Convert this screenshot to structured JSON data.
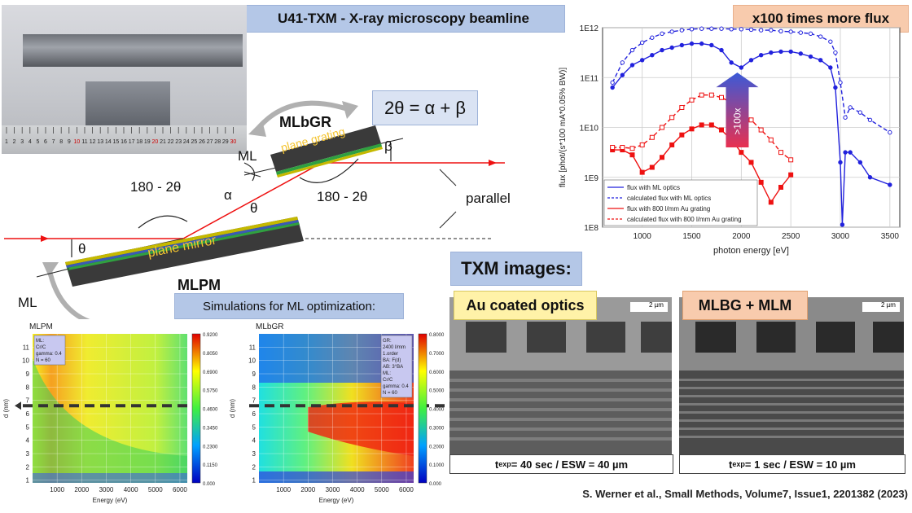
{
  "title": "U41-TXM - X-ray microscopy beamline",
  "flux_gain": "x100 times more flux",
  "equation": "2θ = α + β",
  "txm_heading": "TXM images:",
  "sim_heading": "Simulations for ML optimization:",
  "diagram": {
    "grating_name": "MLbGR",
    "grating_label": "plane grating",
    "mirror_name": "MLPM",
    "mirror_label": "plane mirror",
    "ml_top": "ML",
    "ml_bottom": "ML",
    "angle_left": "180 - 2θ",
    "angle_right": "180 - 2θ",
    "alpha": "α",
    "beta": "β",
    "theta_mid": "θ",
    "theta_low": "θ",
    "parallel": "parallel"
  },
  "ruler_numbers": [
    "1",
    "2",
    "3",
    "4",
    "5",
    "6",
    "7",
    "8",
    "9",
    "10",
    "11",
    "12",
    "13",
    "14",
    "15",
    "16",
    "17",
    "18",
    "19",
    "20",
    "21",
    "22",
    "23",
    "24",
    "25",
    "26",
    "27",
    "28",
    "29",
    "30"
  ],
  "flux_chart": {
    "ylabel": "flux [phot/(s*100 mA*0.05% BW)]",
    "xlabel": "photon energy [eV]",
    "y_ticks": [
      "1E12",
      "1E11",
      "1E10",
      "1E9",
      "1E8"
    ],
    "x_ticks": [
      "1000",
      "1500",
      "2000",
      "2500",
      "3000",
      "3500"
    ],
    "arrow_label": ">100x",
    "legend": [
      "flux with ML optics",
      "calculated flux with ML optics",
      "flux with 800 l/mm Au grating",
      "calculated flux with 800 l/mm Au grating"
    ]
  },
  "chart_data": [
    {
      "type": "line",
      "title": "",
      "xlabel": "photon energy [eV]",
      "ylabel": "flux [phot/(s*100 mA*0.05% BW)]",
      "xlim": [
        600,
        3600
      ],
      "ylim_log10": [
        8,
        12
      ],
      "series": [
        {
          "name": "flux with ML optics",
          "color": "#2222dd",
          "dash": false,
          "marker": "star",
          "x": [
            700,
            800,
            900,
            1000,
            1100,
            1200,
            1300,
            1400,
            1500,
            1600,
            1700,
            1800,
            1900,
            2000,
            2100,
            2200,
            2300,
            2400,
            2500,
            2600,
            2700,
            2800,
            2900,
            2950,
            3000,
            3020,
            3050,
            3100,
            3200,
            3300,
            3500
          ],
          "log10_y": [
            10.8,
            11.05,
            11.25,
            11.35,
            11.45,
            11.55,
            11.6,
            11.65,
            11.68,
            11.68,
            11.65,
            11.55,
            11.3,
            11.2,
            11.35,
            11.45,
            11.5,
            11.52,
            11.52,
            11.48,
            11.42,
            11.35,
            11.2,
            10.8,
            9.3,
            8.05,
            9.5,
            9.5,
            9.3,
            9.0,
            8.85
          ]
        },
        {
          "name": "calculated flux with ML optics",
          "color": "#2222dd",
          "dash": true,
          "marker": "open-star",
          "x": [
            700,
            800,
            900,
            1000,
            1100,
            1200,
            1300,
            1400,
            1500,
            1600,
            1700,
            1800,
            1900,
            2000,
            2100,
            2200,
            2300,
            2400,
            2500,
            2600,
            2700,
            2800,
            2900,
            2950,
            3000,
            3050,
            3100,
            3200,
            3300,
            3500
          ],
          "log10_y": [
            10.9,
            11.3,
            11.55,
            11.7,
            11.8,
            11.88,
            11.92,
            11.95,
            11.97,
            11.98,
            11.98,
            11.98,
            11.97,
            11.97,
            11.96,
            11.95,
            11.95,
            11.93,
            11.92,
            11.9,
            11.88,
            11.82,
            11.72,
            11.5,
            10.9,
            10.2,
            10.4,
            10.3,
            10.15,
            9.9
          ]
        },
        {
          "name": "flux with 800 l/mm Au grating",
          "color": "#ee1111",
          "dash": false,
          "marker": "square",
          "x": [
            700,
            800,
            900,
            1000,
            1100,
            1200,
            1300,
            1400,
            1500,
            1600,
            1700,
            1800,
            1900,
            2000,
            2100,
            2200,
            2300,
            2400,
            2500
          ],
          "log10_y": [
            9.55,
            9.55,
            9.45,
            9.1,
            9.2,
            9.4,
            9.65,
            9.85,
            9.97,
            10.05,
            10.05,
            9.95,
            9.75,
            9.5,
            9.3,
            8.9,
            8.5,
            8.8,
            9.05
          ]
        },
        {
          "name": "calculated flux with 800 l/mm Au grating",
          "color": "#ee1111",
          "dash": true,
          "marker": "open-square",
          "x": [
            700,
            800,
            900,
            1000,
            1100,
            1200,
            1300,
            1400,
            1500,
            1600,
            1700,
            1800,
            1900,
            2000,
            2100,
            2200,
            2300,
            2400,
            2500
          ],
          "log10_y": [
            9.6,
            9.6,
            9.58,
            9.65,
            9.8,
            10.0,
            10.2,
            10.4,
            10.55,
            10.65,
            10.65,
            10.6,
            10.5,
            10.35,
            10.15,
            9.95,
            9.75,
            9.5,
            9.35
          ]
        }
      ]
    },
    {
      "type": "heatmap",
      "title": "MLPM",
      "xlabel": "Energy (eV)",
      "ylabel": "d (nm)",
      "x_ticks": [
        "1000",
        "2000",
        "3000",
        "4000",
        "5000",
        "6000"
      ],
      "y_ticks": [
        "1",
        "2",
        "3",
        "4",
        "5",
        "6",
        "7",
        "8",
        "9",
        "10",
        "11"
      ],
      "colorbar_ticks": [
        "0.9200",
        "0.8050",
        "0.6900",
        "0.5750",
        "0.4600",
        "0.3450",
        "0.2300",
        "0.1150",
        "0.000"
      ],
      "info": [
        "ML:",
        "Cr/C",
        "gamma: 0.4",
        "N = 60"
      ]
    },
    {
      "type": "heatmap",
      "title": "MLbGR",
      "xlabel": "Energy (eV)",
      "ylabel": "d (nm)",
      "x_ticks": [
        "1000",
        "2000",
        "3000",
        "4000",
        "5000",
        "6000"
      ],
      "y_ticks": [
        "1",
        "2",
        "3",
        "4",
        "5",
        "6",
        "7",
        "8",
        "9",
        "10",
        "11"
      ],
      "colorbar_ticks": [
        "0.8000",
        "0.7000",
        "0.6000",
        "0.5000",
        "0.4000",
        "0.3000",
        "0.2000",
        "0.1000",
        "0.000"
      ],
      "info": [
        "GR:",
        "2400 l/mm",
        "1.order",
        "BA: F(d)",
        "AB: 3°BA",
        "ML:",
        "Cr/C",
        "gamma: 0.4",
        "N = 60"
      ]
    }
  ],
  "txm": {
    "left_label": "Au coated optics",
    "right_label": "MLBG + MLM",
    "scale_left": "2 µm",
    "scale_right": "2 µm",
    "left_cap_pre": "t",
    "left_cap_sub": "exp",
    "left_cap_post": "= 40 sec / ESW = 40 µm",
    "right_cap_pre": "t",
    "right_cap_sub": "exp",
    "right_cap_post": "= 1 sec / ESW = 10 µm"
  },
  "citation": "S. Werner et al., Small Methods, Volume7, Issue1, 2201382 (2023)",
  "colors": {
    "title_bg": "#b4c7e7",
    "flux_bg": "#f8cbad",
    "beam": "#ee1111",
    "blue_series": "#2222dd"
  }
}
